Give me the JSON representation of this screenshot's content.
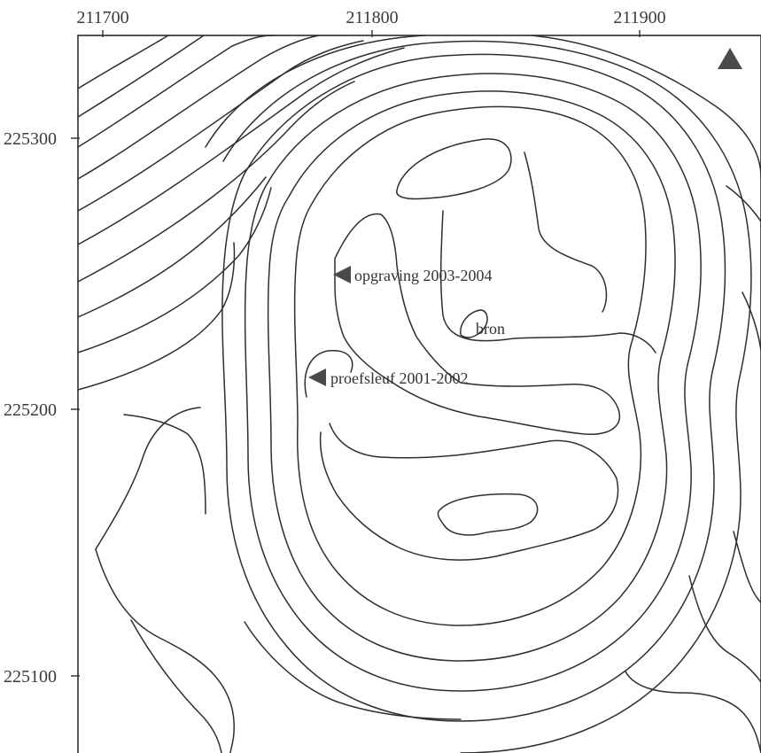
{
  "map": {
    "x_axis_ticks": [
      "211700",
      "211800",
      "211900"
    ],
    "y_axis_ticks": [
      "225300",
      "225200",
      "225100"
    ],
    "labels": {
      "excavation": "opgraving 2003-2004",
      "spring": "bron",
      "trial_trench": "proefsleuf 2001-2002"
    },
    "north_marker": "triangle-icon",
    "colors": {
      "lines": "#2e2e2e",
      "markers": "#4a4a4a",
      "text": "#3a3a3a"
    }
  }
}
